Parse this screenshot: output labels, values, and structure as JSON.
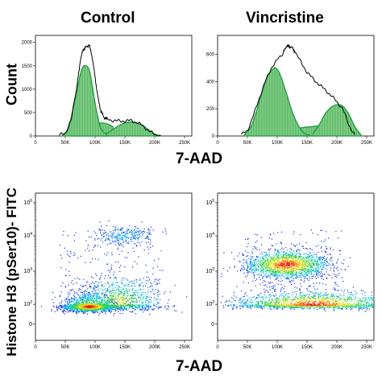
{
  "titles": {
    "control": "Control",
    "vincristine": "Vincristine"
  },
  "axis_labels": {
    "top_x": "7-AAD",
    "top_y": "Count",
    "bottom_x": "7-AAD",
    "bottom_y": "Histone H3 (pSer10)- FITC"
  },
  "colors": {
    "fit": "#1a9e3a",
    "fit_fill": "#8fd08f",
    "outline": "#000000"
  },
  "chart_data": [
    {
      "type": "area",
      "title": "Control",
      "xlabel": "7-AAD",
      "ylabel": "Count",
      "xlim": [
        0,
        262144
      ],
      "ylim": [
        0,
        2150
      ],
      "x_ticks": [
        "0",
        "50K",
        "100K",
        "150K",
        "200K",
        "250K"
      ],
      "x_tick_values": [
        0,
        50000,
        100000,
        150000,
        200000,
        250000
      ],
      "y_ticks": [
        "0",
        "500",
        "1000",
        "1500",
        "2000"
      ],
      "y_tick_values": [
        0,
        500,
        1000,
        1500,
        2000
      ],
      "series": [
        {
          "x": [
            40000,
            50000,
            60000,
            70000,
            75000,
            80000,
            85000,
            90000,
            95000,
            100000,
            105000,
            110000,
            115000,
            120000,
            130000,
            140000,
            150000,
            160000,
            170000,
            180000,
            190000,
            200000,
            210000
          ],
          "values": [
            20,
            60,
            350,
            1100,
            1600,
            1850,
            1900,
            1950,
            1700,
            1250,
            800,
            520,
            400,
            360,
            330,
            320,
            320,
            330,
            290,
            220,
            110,
            30,
            5
          ]
        },
        {
          "x": [
            45000,
            55000,
            65000,
            75000,
            80000,
            85000,
            90000,
            95000,
            100000,
            105000,
            110000,
            120000
          ],
          "values": [
            10,
            150,
            700,
            1300,
            1480,
            1500,
            1420,
            1100,
            700,
            380,
            150,
            20
          ]
        },
        {
          "x": [
            110000,
            120000,
            130000,
            140000,
            150000,
            160000,
            170000,
            180000,
            190000,
            200000,
            210000
          ],
          "values": [
            20,
            60,
            140,
            220,
            280,
            300,
            280,
            220,
            130,
            40,
            5
          ]
        },
        {
          "x": [
            60000,
            70000,
            80000,
            90000,
            100000,
            110000,
            120000,
            130000
          ],
          "values": [
            60,
            120,
            180,
            220,
            260,
            280,
            260,
            200
          ]
        }
      ]
    },
    {
      "type": "area",
      "title": "Vincristine",
      "xlabel": "7-AAD",
      "ylabel": "Count",
      "xlim": [
        0,
        262144
      ],
      "ylim": [
        0,
        740
      ],
      "x_ticks": [
        "0",
        "50K",
        "100K",
        "150K",
        "200K",
        "250K"
      ],
      "x_tick_values": [
        0,
        50000,
        100000,
        150000,
        200000,
        250000
      ],
      "y_ticks": [
        "0",
        "200",
        "400",
        "600"
      ],
      "y_tick_values": [
        0,
        200,
        400,
        600
      ],
      "series": [
        {
          "x": [
            40000,
            50000,
            60000,
            70000,
            80000,
            90000,
            100000,
            110000,
            115000,
            120000,
            125000,
            130000,
            140000,
            150000,
            160000,
            170000,
            180000,
            190000,
            200000,
            210000,
            220000,
            230000
          ],
          "values": [
            10,
            40,
            150,
            280,
            400,
            500,
            560,
            610,
            660,
            660,
            650,
            620,
            540,
            470,
            420,
            380,
            340,
            300,
            250,
            200,
            80,
            10
          ]
        },
        {
          "x": [
            45000,
            55000,
            65000,
            75000,
            85000,
            95000,
            100000,
            105000,
            115000,
            125000,
            135000,
            145000,
            155000
          ],
          "values": [
            10,
            60,
            180,
            330,
            450,
            500,
            490,
            450,
            320,
            180,
            80,
            20,
            5
          ]
        },
        {
          "x": [
            160000,
            170000,
            180000,
            190000,
            200000,
            210000,
            220000,
            230000,
            240000
          ],
          "values": [
            20,
            80,
            160,
            210,
            230,
            220,
            160,
            70,
            10
          ]
        },
        {
          "x": [
            100000,
            120000,
            140000,
            160000,
            180000
          ],
          "values": [
            20,
            40,
            60,
            70,
            80
          ]
        }
      ]
    },
    {
      "type": "scatter",
      "title": "Control",
      "xlabel": "7-AAD",
      "ylabel": "Histone H3 (pSer10)- FITC",
      "xlim": [
        0,
        262144
      ],
      "x_ticks": [
        "0",
        "50K",
        "100K",
        "150K",
        "200K",
        "250K"
      ],
      "x_tick_values": [
        0,
        50000,
        100000,
        150000,
        200000,
        250000
      ],
      "y_scale": "biexponential",
      "y_ticks": [
        "0",
        "10^2",
        "10^3",
        "10^4",
        "10^5"
      ],
      "clusters": [
        {
          "x_center": 90000,
          "y_center_decades": 1.8,
          "x_spread": 22000,
          "y_spread": 0.25,
          "density": "high"
        },
        {
          "x_center": 140000,
          "y_center_decades": 2.1,
          "x_spread": 35000,
          "y_spread": 0.35,
          "density": "medium"
        },
        {
          "x_center": 150000,
          "y_center_decades": 4.0,
          "x_spread": 25000,
          "y_spread": 0.15,
          "density": "low"
        }
      ]
    },
    {
      "type": "scatter",
      "title": "Vincristine",
      "xlabel": "7-AAD",
      "ylabel": "Histone H3 (pSer10)- FITC",
      "xlim": [
        0,
        262144
      ],
      "x_ticks": [
        "0",
        "50K",
        "100K",
        "150K",
        "200K",
        "250K"
      ],
      "x_tick_values": [
        0,
        50000,
        100000,
        150000,
        200000,
        250000
      ],
      "y_scale": "biexponential",
      "y_ticks": [
        "0",
        "10^2",
        "10^3",
        "10^4",
        "10^5"
      ],
      "clusters": [
        {
          "x_center": 115000,
          "y_center_decades": 3.2,
          "x_spread": 35000,
          "y_spread": 0.2,
          "density": "high"
        },
        {
          "x_center": 160000,
          "y_center_decades": 2.0,
          "x_spread": 70000,
          "y_spread": 0.2,
          "density": "high"
        }
      ]
    }
  ]
}
